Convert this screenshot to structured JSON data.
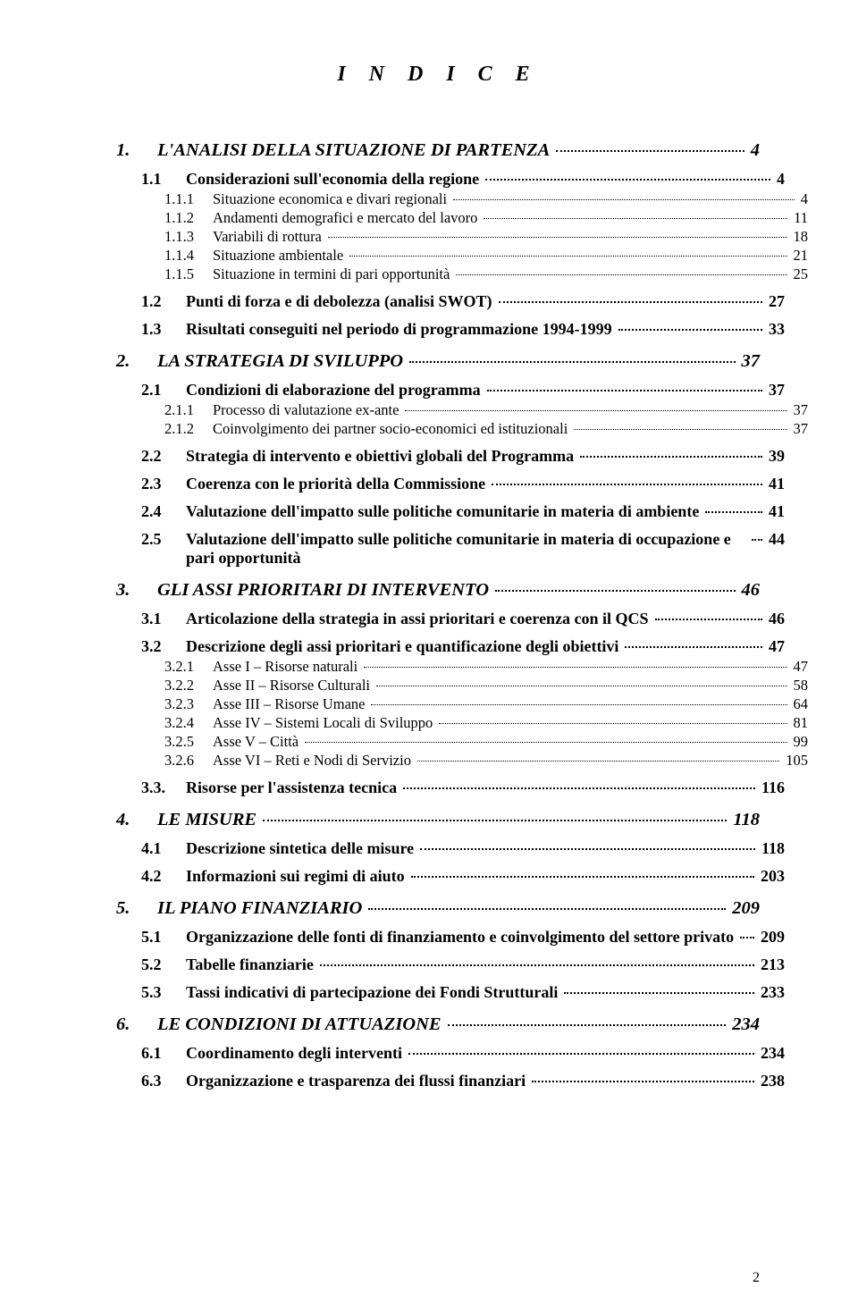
{
  "title": "I N D I C E",
  "pageNumber": "2",
  "toc": [
    {
      "lvl": 0,
      "num": "1.",
      "text": "L'ANALISI DELLA SITUAZIONE DI PARTENZA",
      "page": "4"
    },
    {
      "lvl": 1,
      "num": "1.1",
      "text": "Considerazioni sull'economia della regione",
      "page": "4"
    },
    {
      "lvl": 2,
      "num": "1.1.1",
      "text": "Situazione economica e divari regionali",
      "page": "4"
    },
    {
      "lvl": 2,
      "num": "1.1.2",
      "text": "Andamenti demografici e mercato del lavoro",
      "page": "11"
    },
    {
      "lvl": 2,
      "num": "1.1.3",
      "text": "Variabili di rottura",
      "page": "18"
    },
    {
      "lvl": 2,
      "num": "1.1.4",
      "text": "Situazione ambientale",
      "page": "21"
    },
    {
      "lvl": 2,
      "num": "1.1.5",
      "text": "Situazione in termini di pari opportunità",
      "page": "25"
    },
    {
      "lvl": 1,
      "num": "1.2",
      "text": "Punti di forza e di debolezza (analisi SWOT)",
      "page": "27"
    },
    {
      "lvl": 1,
      "num": "1.3",
      "text": "Risultati conseguiti nel periodo di programmazione 1994-1999",
      "page": "33"
    },
    {
      "lvl": 0,
      "num": "2.",
      "text": "LA STRATEGIA DI SVILUPPO",
      "page": "37"
    },
    {
      "lvl": 1,
      "num": "2.1",
      "text": "Condizioni di elaborazione del programma",
      "page": "37"
    },
    {
      "lvl": 2,
      "num": "2.1.1",
      "text": "Processo di valutazione ex-ante",
      "page": "37"
    },
    {
      "lvl": 2,
      "num": "2.1.2",
      "text": "Coinvolgimento dei partner socio-economici ed istituzionali",
      "page": "37"
    },
    {
      "lvl": 1,
      "num": "2.2",
      "text": "Strategia di intervento e obiettivi globali del Programma",
      "page": "39"
    },
    {
      "lvl": 1,
      "num": "2.3",
      "text": "Coerenza con le priorità della Commissione",
      "page": "41"
    },
    {
      "lvl": 1,
      "num": "2.4",
      "text": "Valutazione dell'impatto sulle politiche comunitarie in materia di ambiente",
      "page": "41"
    },
    {
      "lvl": 1,
      "num": "2.5",
      "text": "Valutazione dell'impatto sulle politiche comunitarie in materia di occupazione e pari opportunità",
      "page": "44"
    },
    {
      "lvl": 0,
      "num": "3.",
      "text": "GLI ASSI PRIORITARI DI INTERVENTO",
      "page": "46"
    },
    {
      "lvl": 1,
      "num": "3.1",
      "text": "Articolazione della strategia in assi prioritari e coerenza con il QCS",
      "page": "46"
    },
    {
      "lvl": 1,
      "num": "3.2",
      "text": "Descrizione degli assi prioritari e quantificazione degli obiettivi",
      "page": "47"
    },
    {
      "lvl": 2,
      "num": "3.2.1",
      "text": "Asse I – Risorse naturali",
      "page": "47"
    },
    {
      "lvl": 2,
      "num": "3.2.2",
      "text": "Asse II – Risorse Culturali",
      "page": "58"
    },
    {
      "lvl": 2,
      "num": "3.2.3",
      "text": "Asse III – Risorse Umane",
      "page": "64"
    },
    {
      "lvl": 2,
      "num": "3.2.4",
      "text": "Asse IV – Sistemi Locali di Sviluppo",
      "page": "81"
    },
    {
      "lvl": 2,
      "num": "3.2.5",
      "text": "Asse V – Città",
      "page": "99"
    },
    {
      "lvl": 2,
      "num": "3.2.6",
      "text": "Asse VI – Reti e Nodi di Servizio",
      "page": "105"
    },
    {
      "lvl": 1,
      "num": "3.3.",
      "text": "Risorse per l'assistenza tecnica",
      "page": "116"
    },
    {
      "lvl": 0,
      "num": "4.",
      "text": "LE MISURE",
      "page": "118"
    },
    {
      "lvl": 1,
      "num": "4.1",
      "text": "Descrizione sintetica delle misure",
      "page": "118"
    },
    {
      "lvl": 1,
      "num": "4.2",
      "text": "Informazioni sui regimi di aiuto",
      "page": "203"
    },
    {
      "lvl": 0,
      "num": "5.",
      "text": "IL PIANO FINANZIARIO",
      "page": "209"
    },
    {
      "lvl": 1,
      "num": "5.1",
      "text": "Organizzazione delle fonti di finanziamento e coinvolgimento del settore privato",
      "page": "209"
    },
    {
      "lvl": 1,
      "num": "5.2",
      "text": "Tabelle finanziarie",
      "page": "213"
    },
    {
      "lvl": 1,
      "num": "5.3",
      "text": "Tassi indicativi di partecipazione dei Fondi Strutturali",
      "page": "233"
    },
    {
      "lvl": 0,
      "num": "6.",
      "text": "LE CONDIZIONI DI ATTUAZIONE",
      "page": "234"
    },
    {
      "lvl": 1,
      "num": "6.1",
      "text": "Coordinamento degli interventi",
      "page": "234"
    },
    {
      "lvl": 1,
      "num": "6.3",
      "text": "Organizzazione e trasparenza dei flussi finanziari",
      "page": "238"
    }
  ]
}
